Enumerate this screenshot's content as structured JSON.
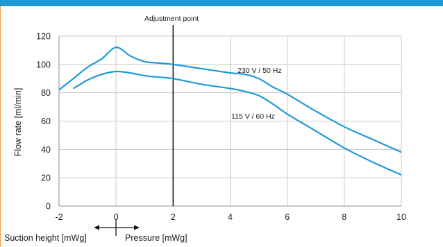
{
  "chart_data": {
    "type": "line",
    "title": "",
    "ylabel": "Flow rate [ml/min]",
    "xlabel_left": "Suction height  [mWg]",
    "xlabel_right": "Pressure [mWg]",
    "xlim": [
      -2,
      10
    ],
    "ylim": [
      0,
      120
    ],
    "x_ticks": [
      -2,
      0,
      2,
      4,
      6,
      8,
      10
    ],
    "y_ticks": [
      0,
      20,
      40,
      60,
      80,
      100,
      120
    ],
    "grid": true,
    "adjustment_label": "Adjustment point",
    "adjustment_x": 2,
    "series": [
      {
        "name": "230 V / 50 Hz",
        "color": "#1f9ad6",
        "x": [
          -2,
          -1.5,
          -1,
          -0.5,
          0,
          0.5,
          1,
          1.5,
          2,
          3,
          4,
          4.5,
          5,
          5.5,
          6,
          7,
          8,
          9,
          10
        ],
        "y": [
          82,
          90,
          98,
          104,
          112,
          106,
          102,
          101,
          100,
          97,
          94,
          93,
          90,
          84,
          79,
          67,
          56,
          47,
          38
        ]
      },
      {
        "name": "115 V / 60 Hz",
        "color": "#1f9ad6",
        "x": [
          -1.5,
          -1.25,
          -1,
          -0.5,
          0,
          0.5,
          1,
          1.5,
          2,
          3,
          4,
          4.5,
          5,
          5.5,
          6,
          7,
          8,
          9,
          10
        ],
        "y": [
          83,
          86,
          89,
          93,
          95,
          94,
          92,
          91,
          90,
          86,
          83,
          81,
          78,
          72,
          65,
          53,
          41,
          31,
          22
        ]
      }
    ]
  }
}
